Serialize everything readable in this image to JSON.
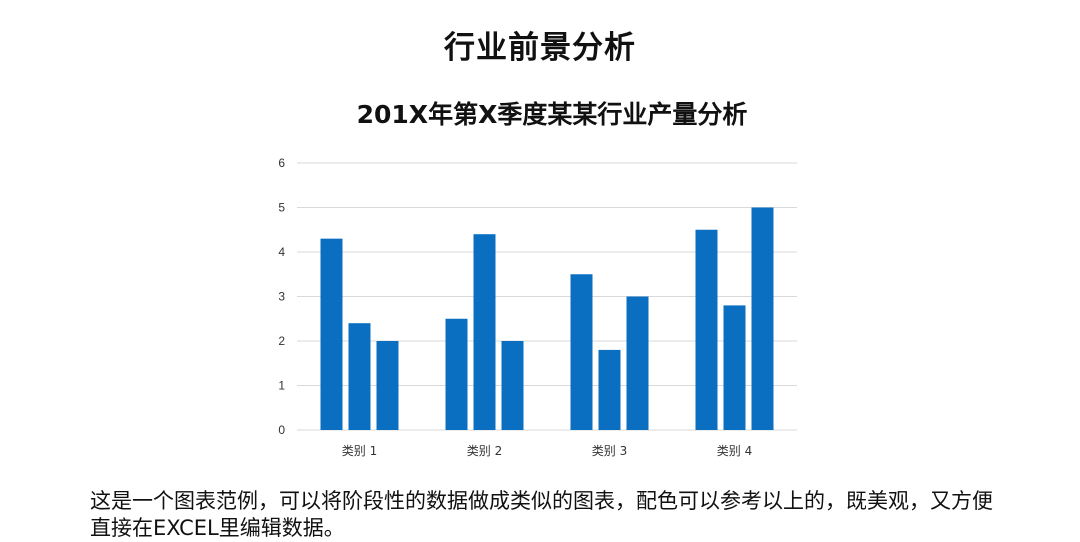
{
  "page": {
    "title": "行业前景分析",
    "caption": "这是一个图表范例，可以将阶段性的数据做成类似的图表，配色可以参考以上的，既美观，又方便直接在EXCEL里编辑数据。"
  },
  "chart_data": {
    "type": "bar",
    "title": "201X年第X季度某某行业产量分析",
    "xlabel": "",
    "ylabel": "",
    "categories": [
      "类别 1",
      "类别 2",
      "类别 3",
      "类别 4"
    ],
    "series": [
      {
        "values": [
          4.3,
          2.5,
          3.5,
          4.5
        ]
      },
      {
        "values": [
          2.4,
          4.4,
          1.8,
          2.8
        ]
      },
      {
        "values": [
          2,
          2,
          3,
          5
        ]
      }
    ],
    "ylim": [
      0,
      6
    ],
    "yticks": [
      "0",
      "1",
      "2",
      "3",
      "4",
      "5",
      "6"
    ],
    "grid": true,
    "legend": "none",
    "colors": {
      "bar": "#0b6fc1",
      "grid": "#d9d9d9"
    }
  }
}
